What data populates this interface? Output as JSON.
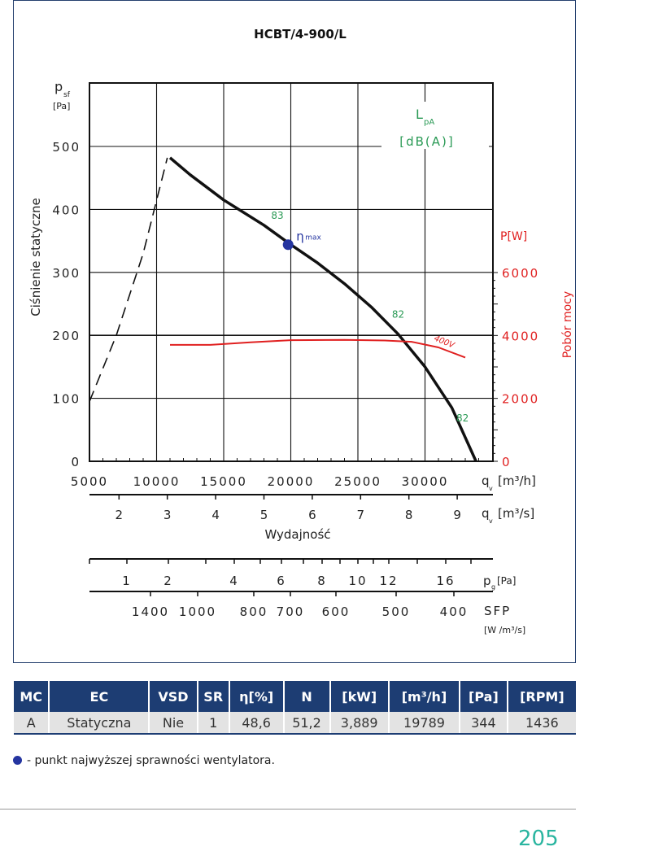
{
  "chart_data": {
    "type": "line",
    "title": "HCBT/4-900/L",
    "ylabel": "Ciśnienie statyczne",
    "y_symbol": "p",
    "y_symbol_sub": "sf",
    "y_unit": "[Pa]",
    "ylim": [
      0,
      600
    ],
    "y_ticks": [
      "0",
      "100",
      "200",
      "300",
      "400",
      "500"
    ],
    "xlim": [
      5000,
      35000
    ],
    "x_ticks": [
      "5000",
      "10000",
      "15000",
      "20000",
      "25000",
      "30000"
    ],
    "x_unit_label": "q",
    "x_unit_sub": "v",
    "x_unit": "[m³/h]",
    "x2_ticks": [
      "2",
      "3",
      "4",
      "5",
      "6",
      "7",
      "8",
      "9"
    ],
    "x2_unit": "[m³/s]",
    "xlabel": "Wydajność",
    "y2label": "Pobór mocy",
    "y2_unit": "P[W]",
    "y2_ticks": [
      "0",
      "2000",
      "4000",
      "6000"
    ],
    "lpa_label": "L",
    "lpa_sub": "pA",
    "lpa_unit": "[dB(A)]",
    "series": [
      {
        "values": [
          [
            11000,
            482
          ],
          [
            12500,
            455
          ],
          [
            15000,
            415
          ],
          [
            18000,
            375
          ],
          [
            20000,
            344
          ],
          [
            22000,
            315
          ],
          [
            24000,
            282
          ],
          [
            26000,
            245
          ],
          [
            28000,
            202
          ],
          [
            30000,
            150
          ],
          [
            32000,
            85
          ],
          [
            33800,
            0
          ]
        ]
      },
      {
        "values": [
          [
            5000,
            95
          ],
          [
            7000,
            200
          ],
          [
            9000,
            330
          ],
          [
            10800,
            482
          ]
        ]
      },
      {
        "name": "400V",
        "values": [
          [
            11000,
            3700
          ],
          [
            14000,
            3700
          ],
          [
            17000,
            3780
          ],
          [
            20000,
            3850
          ],
          [
            24000,
            3860
          ],
          [
            27000,
            3840
          ],
          [
            29000,
            3800
          ],
          [
            31000,
            3620
          ],
          [
            33000,
            3300
          ]
        ]
      }
    ],
    "noise_labels": [
      {
        "text": "83",
        "x": 19000,
        "y": 385
      },
      {
        "text": "82",
        "x": 28000,
        "y": 228
      },
      {
        "text": "82",
        "x": 32800,
        "y": 63
      }
    ],
    "eta_max": {
      "label": "η",
      "sub": "max",
      "x": 19800,
      "y": 344
    },
    "pg_ticks": [
      "1",
      "2",
      "4",
      "6",
      "8",
      "10",
      "12",
      "16"
    ],
    "pg_unit": "p",
    "pg_unit_sub": "g",
    "pg_unit_tail": "[Pa]",
    "sfp_ticks": [
      "1400",
      "1000",
      "800",
      "700",
      "600",
      "500",
      "400"
    ],
    "sfp_label": "SFP",
    "sfp_unit": "[W /m³/s]"
  },
  "table": {
    "headers": [
      "MC",
      "EC",
      "VSD",
      "SR",
      "η[%]",
      "N",
      "[kW]",
      "[m³/h]",
      "[Pa]",
      "[RPM]"
    ],
    "row": [
      "A",
      "Statyczna",
      "Nie",
      "1",
      "48,6",
      "51,2",
      "3,889",
      "19789",
      "344",
      "1436"
    ]
  },
  "legend": {
    "text": "- punkt najwyższej sprawności wentylatora."
  },
  "page_number": "205",
  "colors": {
    "accent": "#1d3d73",
    "red": "#e02020",
    "green": "#2a9a55",
    "dot": "#2535a0",
    "page": "#2ab5a0"
  }
}
